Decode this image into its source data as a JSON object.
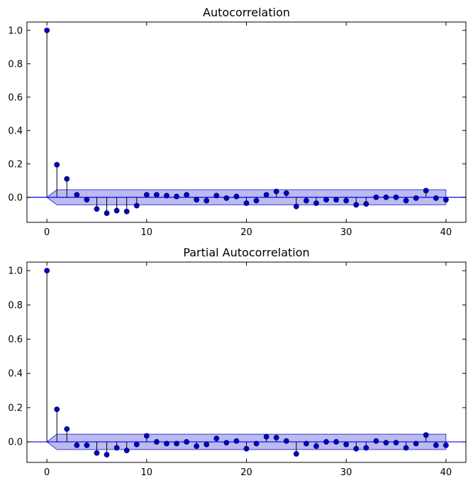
{
  "chart_data": [
    {
      "type": "stem",
      "title": "Autocorrelation",
      "xlabel": "",
      "ylabel": "",
      "xlim": [
        -2,
        42
      ],
      "ylim": [
        -0.15,
        1.05
      ],
      "xticks": [
        0,
        10,
        20,
        30,
        40
      ],
      "yticks": [
        0.0,
        0.2,
        0.4,
        0.6,
        0.8,
        1.0
      ],
      "grid": false,
      "colors": {
        "stem": "#000000",
        "marker": "#0000cc",
        "zero_line": "#0000ff",
        "band_fill": "#aaaaee",
        "band_edge": "#4040cc"
      },
      "confidence_band": {
        "lag": [
          0,
          1,
          40
        ],
        "upper": [
          0.0,
          0.045,
          0.045
        ],
        "lower": [
          0.0,
          -0.045,
          -0.045
        ]
      },
      "x": [
        0,
        1,
        2,
        3,
        4,
        5,
        6,
        7,
        8,
        9,
        10,
        11,
        12,
        13,
        14,
        15,
        16,
        17,
        18,
        19,
        20,
        21,
        22,
        23,
        24,
        25,
        26,
        27,
        28,
        29,
        30,
        31,
        32,
        33,
        34,
        35,
        36,
        37,
        38,
        39,
        40
      ],
      "values": [
        1.0,
        0.195,
        0.11,
        0.015,
        -0.015,
        -0.07,
        -0.095,
        -0.08,
        -0.085,
        -0.05,
        0.015,
        0.015,
        0.01,
        0.005,
        0.015,
        -0.015,
        -0.02,
        0.01,
        -0.005,
        0.005,
        -0.035,
        -0.02,
        0.015,
        0.035,
        0.025,
        -0.055,
        -0.02,
        -0.035,
        -0.015,
        -0.015,
        -0.02,
        -0.045,
        -0.04,
        0.0,
        0.0,
        0.0,
        -0.02,
        -0.005,
        0.04,
        -0.005,
        -0.015
      ]
    },
    {
      "type": "stem",
      "title": "Partial Autocorrelation",
      "xlabel": "",
      "ylabel": "",
      "xlim": [
        -2,
        42
      ],
      "ylim": [
        -0.12,
        1.05
      ],
      "xticks": [
        0,
        10,
        20,
        30,
        40
      ],
      "yticks": [
        0.0,
        0.2,
        0.4,
        0.6,
        0.8,
        1.0
      ],
      "grid": false,
      "colors": {
        "stem": "#000000",
        "marker": "#0000cc",
        "zero_line": "#0000ff",
        "band_fill": "#aaaaee",
        "band_edge": "#4040cc"
      },
      "confidence_band": {
        "lag": [
          0,
          1,
          40
        ],
        "upper": [
          0.0,
          0.045,
          0.045
        ],
        "lower": [
          0.0,
          -0.045,
          -0.045
        ]
      },
      "x": [
        0,
        1,
        2,
        3,
        4,
        5,
        6,
        7,
        8,
        9,
        10,
        11,
        12,
        13,
        14,
        15,
        16,
        17,
        18,
        19,
        20,
        21,
        22,
        23,
        24,
        25,
        26,
        27,
        28,
        29,
        30,
        31,
        32,
        33,
        34,
        35,
        36,
        37,
        38,
        39,
        40
      ],
      "values": [
        1.0,
        0.19,
        0.075,
        -0.02,
        -0.02,
        -0.065,
        -0.075,
        -0.035,
        -0.05,
        -0.015,
        0.035,
        0.0,
        -0.01,
        -0.01,
        0.0,
        -0.025,
        -0.015,
        0.02,
        -0.005,
        0.005,
        -0.04,
        -0.01,
        0.03,
        0.025,
        0.005,
        -0.07,
        -0.01,
        -0.025,
        0.0,
        0.0,
        -0.015,
        -0.04,
        -0.035,
        0.005,
        -0.005,
        -0.005,
        -0.035,
        -0.01,
        0.04,
        -0.02,
        -0.02
      ]
    }
  ]
}
